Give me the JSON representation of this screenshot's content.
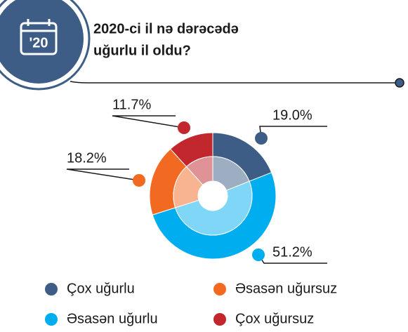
{
  "title_lines": [
    "2020-ci il nə dərəcədə",
    "uğurlu il oldu?"
  ],
  "icon_label": "'20",
  "chart_data": {
    "type": "pie",
    "categories": [
      "Çox uğurlu",
      "Əsasən uğurlu",
      "Əsasən uğursuz",
      "Çox uğursuz"
    ],
    "values": [
      19.0,
      51.2,
      18.2,
      11.7
    ],
    "value_labels": [
      "19.0%",
      "51.2%",
      "18.2%",
      "11.7%"
    ],
    "colors": [
      "#3e5d86",
      "#00aeef",
      "#f26a21",
      "#c1272d"
    ]
  }
}
